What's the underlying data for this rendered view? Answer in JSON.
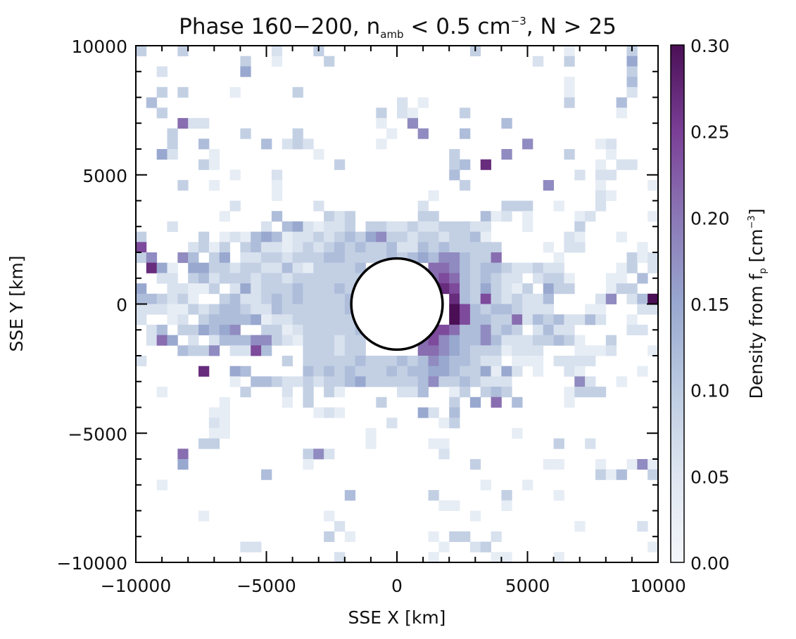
{
  "chart_data": {
    "type": "heatmap",
    "title": {
      "main": "Phase 160−200, n",
      "subscript": "amb",
      "middle": " < 0.5 cm",
      "superscript": "−3",
      "end": ", N > 25"
    },
    "xlabel": "SSE X [km]",
    "ylabel": "SSE Y [km]",
    "xlim": [
      -10000,
      10000
    ],
    "ylim": [
      -10000,
      10000
    ],
    "x_ticks": [
      -10000,
      -5000,
      0,
      5000,
      10000
    ],
    "x_tick_labels": [
      "−10000",
      "−5000",
      "0",
      "5000",
      "10000"
    ],
    "y_ticks": [
      -10000,
      -5000,
      0,
      5000,
      10000
    ],
    "y_tick_labels": [
      "−10000",
      "−5000",
      "0",
      "5000",
      "10000"
    ],
    "minor_tick_step": 1000,
    "bin_size_km": 400,
    "colorbar": {
      "label_main": "Density from f",
      "label_sub": "p",
      "label_unit": " [cm",
      "label_sup": "−3",
      "label_close": "]",
      "range": [
        0.0,
        0.3
      ],
      "ticks": [
        0.0,
        0.05,
        0.1,
        0.15,
        0.2,
        0.25,
        0.3
      ],
      "tick_labels": [
        "0.00",
        "0.05",
        "0.10",
        "0.15",
        "0.20",
        "0.25",
        "0.30"
      ],
      "colors": [
        "#f4f7fb",
        "#dfe6f1",
        "#bccbe1",
        "#98a8cf",
        "#8b78b6",
        "#7a3f96",
        "#4a0f55"
      ]
    },
    "grid_encoding": "rows top (y=+10000) to bottom; each char is a density level; value = level * 0.03; '0' = empty bin; 'a' = 10",
    "level_scale": 0.03,
    "grid": [
      "30003000000002000300000000000000300000000100000300",
      "00000000003001000030000000000000000000200300000500",
      "00200000005000000000000000000000000000000000000300",
      "00000000000000000000000000000000000000000100000400",
      "00303000010000030000000000000000000000000100000200",
      "04000000000000000000000002010000000000000300004000",
      "00300000000000000000000302100003000000000000001000",
      "00007220000000000000000100600000000400000000000000",
      "00030000003000030000000010060004000000000000000000",
      "00030040000040232000000100000000000006000000120000",
      "00520001000000000100000000000030000600000300010000",
      "00000031000000000003000000000034090000000000102200",
      "00000000010002000000000000000040000000000020220000",
      "00003001000001000000000000000003000000060000100001",
      "00000000000001000000000000001000000000000000210000",
      "00000000020000000200000000020000000333001000200000",
      "00000000100004000032300000033000041201000012000001",
      "00020000000020452122303322322333220001000030000000",
      "30000030121454122323435633233233410000000210001000",
      "80000231303422123234343342243433333000010220000010",
      "36006403502233233344333343454664337000001000000312",
      "09510553323322421333340000007764344322322000001302",
      "00220342333233233333330000007874343220233100011040",
      "50022113025233343334300000000984353213053300013300",
      "4432310034223434333340000000009438323224000026024a",
      "222113234432243333334000000000a8434432220001100022",
      "200120344445122333333000000000a8443372434224200100",
      "02403354560033123333340000008874463430242200000220",
      "02750202444663213332330000078654464222334310030000",
      "00004336022840003332330000077654333122200011120001",
      "20000000000000303333343334346544322011102222000000",
      "00000090054000004343433343445543351520100210000010",
      "00000000010443223233453333346334322200000062001000",
      "00100000003000203031000002240013034300000133300000",
      "00000000100000103000000300000030507040000100000000",
      "00000001100000000121000000052040000000000000000000",
      "00000002100000000000000020000130000000000000000000",
      "00000001100000000000001000000000000010000000000000",
      "00000033000000000000001000001100000000003002000000",
      "00007000000000003620000000000200000000000000000000",
      "00005000000000001000000000000000300000011000100161",
      "00000000000040000000000000000000000000000000314003",
      "00100000000000000000000000000000010001000000000000",
      "00000000000000000000400000003000000300001000000000",
      "00000000000000000000000000000110000100000000000000",
      "00000010000000000010000000000000100000000000000000",
      "00000000000000000002000000000000000000000010000020",
      "00000000000000000030100000001033002000000000000000",
      "00000000002200000000000000000100230000000000000001",
      "00000000000000000002000000001000001100001000000000"
    ],
    "overlay_circle": {
      "center_km": [
        0,
        0
      ],
      "radius_km": 1750,
      "fill": "#ffffff",
      "stroke": "#000000"
    }
  }
}
